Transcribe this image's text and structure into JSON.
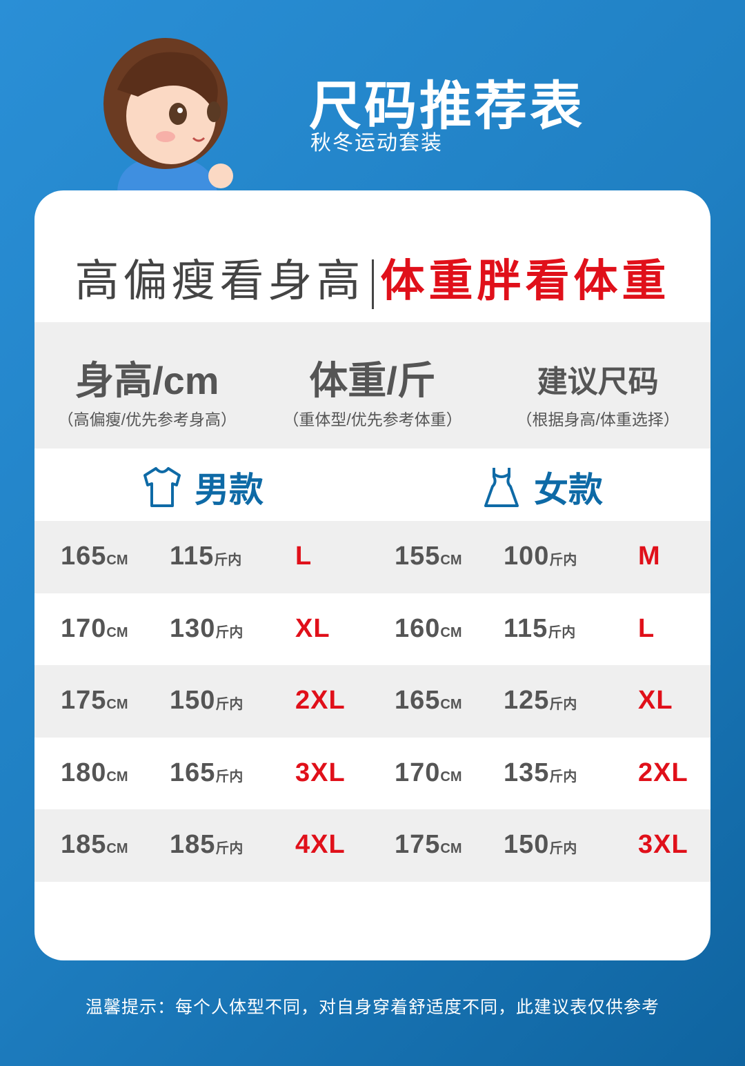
{
  "header": {
    "title": "尺码推荐表",
    "subtitle": "秋冬运动套装"
  },
  "slogan": {
    "left": "高偏瘦看身高",
    "right": "体重胖看体重"
  },
  "columns": [
    {
      "title": "身高/cm",
      "note": "（高偏瘦/优先参考身高）"
    },
    {
      "title": "体重/斤",
      "note": "（重体型/优先参考体重）"
    },
    {
      "title": "建议尺码",
      "note": "（根据身高/体重选择）"
    }
  ],
  "genders": {
    "men": {
      "label": "男款",
      "icon": "tshirt-icon"
    },
    "women": {
      "label": "女款",
      "icon": "dress-icon"
    }
  },
  "units": {
    "height": "CM",
    "weight": "斤内"
  },
  "rows": [
    {
      "m_h": "165",
      "m_w": "115",
      "m_s": "L",
      "w_h": "155",
      "w_w": "100",
      "w_s": "M"
    },
    {
      "m_h": "170",
      "m_w": "130",
      "m_s": "XL",
      "w_h": "160",
      "w_w": "115",
      "w_s": "L"
    },
    {
      "m_h": "175",
      "m_w": "150",
      "m_s": "2XL",
      "w_h": "165",
      "w_w": "125",
      "w_s": "XL"
    },
    {
      "m_h": "180",
      "m_w": "165",
      "m_s": "3XL",
      "w_h": "170",
      "w_w": "135",
      "w_s": "2XL"
    },
    {
      "m_h": "185",
      "m_w": "185",
      "m_s": "4XL",
      "w_h": "175",
      "w_w": "150",
      "w_s": "3XL"
    }
  ],
  "tip": "温馨提示：每个人体型不同，对自身穿着舒适度不同，此建议表仅供参考",
  "colors": {
    "accent_red": "#e0101a",
    "accent_blue": "#0e6aa6",
    "background": "#1f7fc2"
  }
}
